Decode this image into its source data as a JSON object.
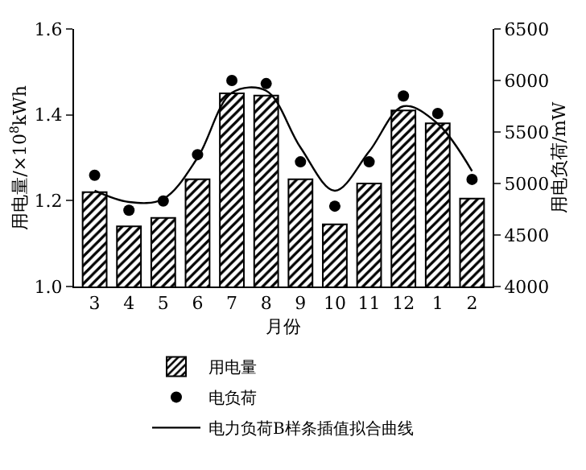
{
  "chart_data": {
    "type": "bar",
    "categories": [
      "3",
      "4",
      "5",
      "6",
      "7",
      "8",
      "9",
      "10",
      "11",
      "12",
      "1",
      "2"
    ],
    "series": [
      {
        "name": "用电量",
        "color": "#000000",
        "values": [
          1.22,
          1.14,
          1.16,
          1.25,
          1.45,
          1.445,
          1.25,
          1.145,
          1.24,
          1.41,
          1.38,
          1.205
        ]
      },
      {
        "name": "电负荷",
        "type": "scatter",
        "axis": "y2",
        "marker": "circle",
        "color": "#000000",
        "values": [
          5080,
          4740,
          4830,
          5280,
          6000,
          5970,
          5210,
          4780,
          5210,
          5850,
          5680,
          5040
        ]
      },
      {
        "name": "电力负荷B样条插值拟合曲线",
        "type": "line",
        "axis": "y2",
        "line_style": "solid",
        "color": "#000000",
        "values": [
          4930,
          4820,
          4850,
          5250,
          5880,
          5900,
          5350,
          4930,
          5310,
          5750,
          5580,
          5120
        ]
      }
    ],
    "xlabel": "月份",
    "ylabel": "用电量/×10$^{8}$kWh",
    "y2label": "用电负荷/mW",
    "ylim": [
      1.0,
      1.6
    ],
    "yticks": [
      {
        "value": 1,
        "label": "1.0"
      },
      1.2,
      1.4,
      1.6
    ],
    "y2lim": [
      4000,
      6500
    ],
    "y2ticks": [
      4000,
      4500,
      5000,
      5500,
      6000,
      6500
    ],
    "grid": false,
    "legend": "bottom"
  }
}
